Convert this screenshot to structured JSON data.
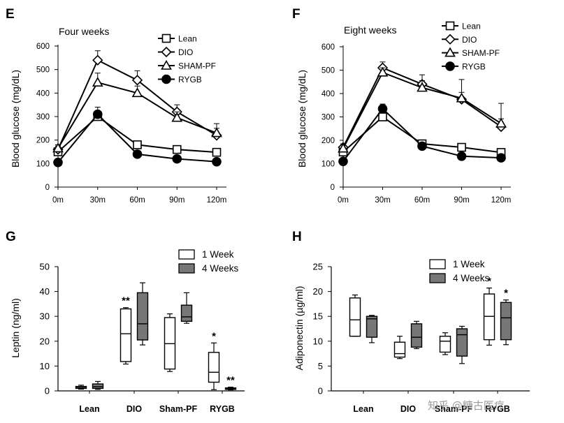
{
  "watermark": "知乎 @糖古医疗",
  "chart_data": [
    {
      "id": "E",
      "panel_label": "E",
      "type": "line",
      "title": "Four weeks",
      "xlabel": "",
      "ylabel": "Blood glucose (mg/dL)",
      "categories": [
        "0m",
        "30m",
        "60m",
        "90m",
        "120m"
      ],
      "ylim": [
        0,
        600
      ],
      "yticks": [
        0,
        100,
        200,
        300,
        400,
        500,
        600
      ],
      "series": [
        {
          "name": "Lean",
          "marker": "square",
          "values": [
            150,
            300,
            180,
            160,
            148
          ],
          "err": [
            12,
            15,
            10,
            10,
            8
          ]
        },
        {
          "name": "DIO",
          "marker": "diamond",
          "values": [
            160,
            540,
            455,
            320,
            220
          ],
          "err": [
            15,
            40,
            40,
            30,
            50
          ]
        },
        {
          "name": "SHAM-PF",
          "marker": "triangle",
          "values": [
            165,
            445,
            400,
            295,
            230
          ],
          "err": [
            15,
            40,
            30,
            25,
            20
          ]
        },
        {
          "name": "RYGB",
          "marker": "circle",
          "values": [
            105,
            310,
            140,
            120,
            108
          ],
          "err": [
            10,
            30,
            10,
            8,
            8
          ]
        }
      ]
    },
    {
      "id": "F",
      "panel_label": "F",
      "type": "line",
      "title": "Eight weeks",
      "xlabel": "",
      "ylabel": "Blood glucose (mg/dL)",
      "categories": [
        "0m",
        "30m",
        "60m",
        "90m",
        "120m"
      ],
      "ylim": [
        0,
        600
      ],
      "yticks": [
        0,
        100,
        200,
        300,
        400,
        500,
        600
      ],
      "series": [
        {
          "name": "Lean",
          "marker": "square",
          "values": [
            150,
            300,
            185,
            170,
            148
          ],
          "err": [
            12,
            15,
            12,
            12,
            8
          ]
        },
        {
          "name": "DIO",
          "marker": "diamond",
          "values": [
            170,
            510,
            440,
            375,
            258
          ],
          "err": [
            15,
            25,
            40,
            85,
            100
          ]
        },
        {
          "name": "SHAM-PF",
          "marker": "triangle",
          "values": [
            165,
            490,
            425,
            380,
            272
          ],
          "err": [
            15,
            20,
            30,
            25,
            20
          ]
        },
        {
          "name": "RYGB",
          "marker": "circle",
          "values": [
            110,
            335,
            175,
            132,
            125
          ],
          "err": [
            10,
            20,
            12,
            8,
            8
          ]
        }
      ]
    },
    {
      "id": "G",
      "panel_label": "G",
      "type": "box",
      "title": "",
      "xlabel": "",
      "ylabel": "Leptin (ng/ml)",
      "categories": [
        "Lean",
        "DIO",
        "Sham-PF",
        "RYGB"
      ],
      "ylim": [
        0,
        50
      ],
      "yticks": [
        0,
        10,
        20,
        30,
        40,
        50
      ],
      "series": [
        {
          "name": "1 Week",
          "fill": "#ffffff",
          "boxes": [
            {
              "min": 0.7,
              "q1": 1.0,
              "median": 1.4,
              "q3": 1.8,
              "max": 2.3
            },
            {
              "min": 10.8,
              "q1": 11.8,
              "median": 23,
              "q3": 33,
              "max": 33.5
            },
            {
              "min": 7.8,
              "q1": 8.8,
              "median": 19,
              "q3": 29.5,
              "max": 31
            },
            {
              "min": 0.5,
              "q1": 3.5,
              "median": 7.5,
              "q3": 15.5,
              "max": 19.3
            }
          ]
        },
        {
          "name": "4 Weeks",
          "fill": "#777777",
          "boxes": [
            {
              "min": 0.6,
              "q1": 1.0,
              "median": 1.7,
              "q3": 2.8,
              "max": 3.8
            },
            {
              "min": 18.5,
              "q1": 20.5,
              "median": 27,
              "q3": 39.5,
              "max": 43.5
            },
            {
              "min": 27.2,
              "q1": 28,
              "median": 29.8,
              "q3": 34.5,
              "max": 39.5
            },
            {
              "min": 0.4,
              "q1": 0.6,
              "median": 0.9,
              "q3": 1.2,
              "max": 1.5
            }
          ]
        }
      ],
      "annotations": [
        {
          "category": "DIO",
          "series": "1 Week",
          "text": "**"
        },
        {
          "category": "RYGB",
          "series": "1 Week",
          "text": "*"
        },
        {
          "category": "RYGB",
          "series": "4 Weeks",
          "text": "**"
        }
      ]
    },
    {
      "id": "H",
      "panel_label": "H",
      "type": "box",
      "title": "",
      "xlabel": "",
      "ylabel": "Adiponectin (µg/ml)",
      "categories": [
        "Lean",
        "DIO",
        "Sham-PF",
        "RYGB"
      ],
      "ylim": [
        0,
        25
      ],
      "yticks": [
        0,
        5,
        10,
        15,
        20,
        25
      ],
      "series": [
        {
          "name": "1 Week",
          "fill": "#ffffff",
          "boxes": [
            {
              "min": 11,
              "q1": 11,
              "median": 14.3,
              "q3": 18.7,
              "max": 19.3
            },
            {
              "min": 6.5,
              "q1": 6.8,
              "median": 7.5,
              "q3": 9.8,
              "max": 11
            },
            {
              "min": 7.3,
              "q1": 7.8,
              "median": 10,
              "q3": 11,
              "max": 11.7
            },
            {
              "min": 9.2,
              "q1": 10.3,
              "median": 15,
              "q3": 19.5,
              "max": 20.7
            }
          ]
        },
        {
          "name": "4 Weeks",
          "fill": "#777777",
          "boxes": [
            {
              "min": 9.7,
              "q1": 10.8,
              "median": 14.5,
              "q3": 15,
              "max": 15.2
            },
            {
              "min": 8.5,
              "q1": 8.8,
              "median": 10.8,
              "q3": 13.5,
              "max": 14
            },
            {
              "min": 5.5,
              "q1": 7,
              "median": 11.3,
              "q3": 12.5,
              "max": 13
            },
            {
              "min": 9.3,
              "q1": 10.3,
              "median": 14.7,
              "q3": 17.8,
              "max": 18.3
            }
          ]
        }
      ],
      "annotations": [
        {
          "category": "RYGB",
          "series": "1 Week",
          "text": "*"
        },
        {
          "category": "RYGB",
          "series": "4 Weeks",
          "text": "*"
        }
      ]
    }
  ]
}
